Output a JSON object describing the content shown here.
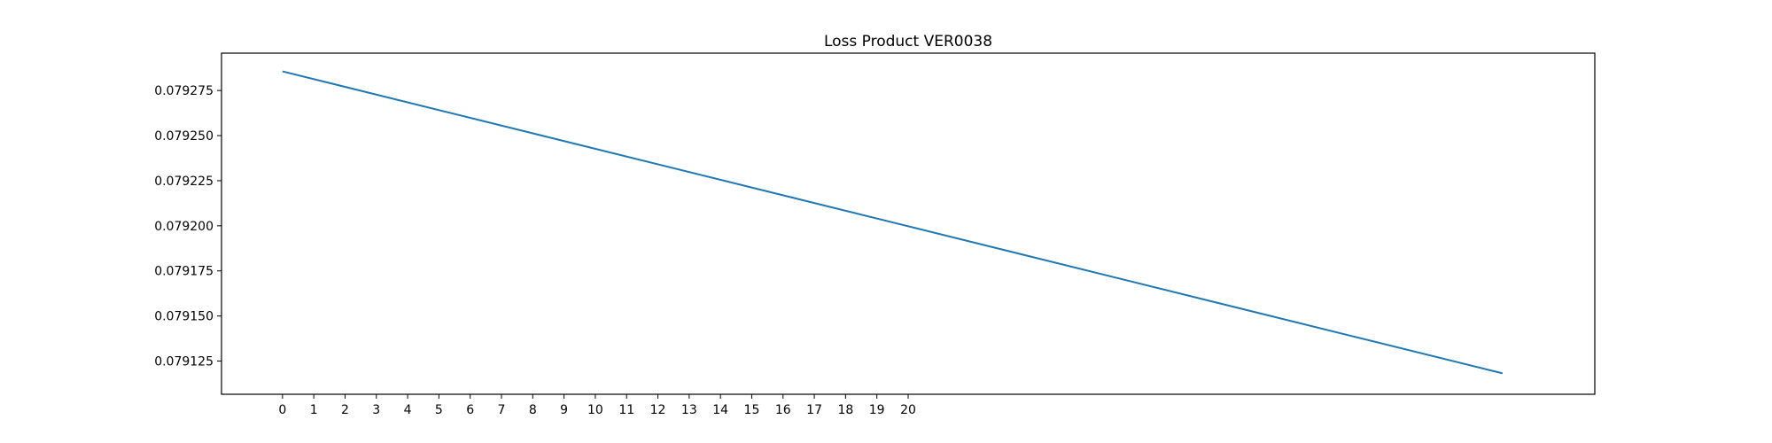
{
  "chart_data": {
    "type": "line",
    "title": "Loss Product VER0038",
    "xlabel": "",
    "ylabel": "",
    "x_ticks": [
      0,
      1,
      2,
      3,
      4,
      5,
      6,
      7,
      8,
      9,
      10,
      11,
      12,
      13,
      14,
      15,
      16,
      17,
      18,
      19,
      20
    ],
    "y_ticks": [
      "0.079125",
      "0.079150",
      "0.079175",
      "0.079200",
      "0.079225",
      "0.079250",
      "0.079275"
    ],
    "xlim": [
      -1.95,
      41.95
    ],
    "ylim": [
      0.0791066,
      0.0792957
    ],
    "grid": false,
    "series": [
      {
        "color": "#1f77b4",
        "x": [
          0,
          39
        ],
        "y": [
          0.0792856,
          0.0791182
        ]
      }
    ]
  }
}
